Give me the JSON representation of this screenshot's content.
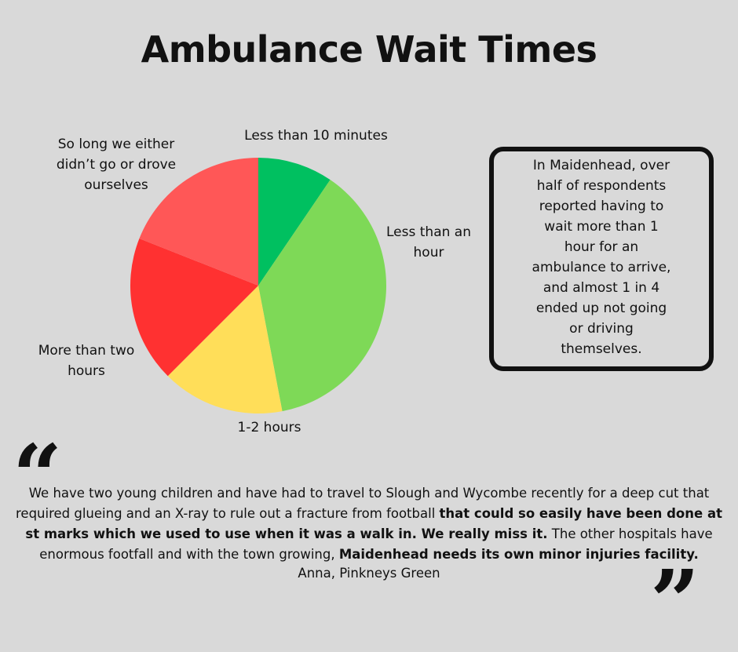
{
  "title": "Ambulance Wait Times",
  "chart_data": {
    "type": "pie",
    "slices": [
      {
        "label": "Less than 10 minutes",
        "value": 9.5,
        "color": "#00c060"
      },
      {
        "label": "Less than an hour",
        "value": 37.5,
        "color": "#7ed957"
      },
      {
        "label": "1-2 hours",
        "value": 15.5,
        "color": "#ffde59"
      },
      {
        "label": "More than two hours",
        "value": 18.5,
        "color": "#ff3131"
      },
      {
        "label": "So long we either didn’t go or drove ourselves",
        "value": 19.0,
        "color": "#ff5757"
      }
    ]
  },
  "labels": {
    "less_than_10": "Less than 10 minutes",
    "less_than_hour_line1": "Less than an",
    "less_than_hour_line2": "hour",
    "one_two_hours": "1-2 hours",
    "more_than_two_line1": "More than two",
    "more_than_two_line2": "hours",
    "so_long_line1": "So long we either",
    "so_long_line2": "didn’t go or drove",
    "so_long_line3": "ourselves"
  },
  "note": {
    "lines": [
      "In Maidenhead, over",
      "half of respondents",
      "reported having to",
      "wait more than 1",
      "hour for an",
      "ambulance to arrive,",
      "and almost 1 in 4",
      "ended up not going",
      "or driving",
      "themselves."
    ]
  },
  "quote": {
    "open_mark": "“",
    "close_mark": "”",
    "part1": "We have two young children and have had to travel to Slough and Wycombe recently for a deep cut that required glueing and an X-ray to rule out a fracture from football ",
    "bold1": "that could so easily have been done at st marks which we used to use when it was a walk in. We really miss it.",
    "part2": " The other hospitals have enormous footfall and with the town growing, ",
    "bold2": "Maidenhead needs its own minor injuries facility.",
    "attribution": "Anna, Pinkneys Green"
  }
}
